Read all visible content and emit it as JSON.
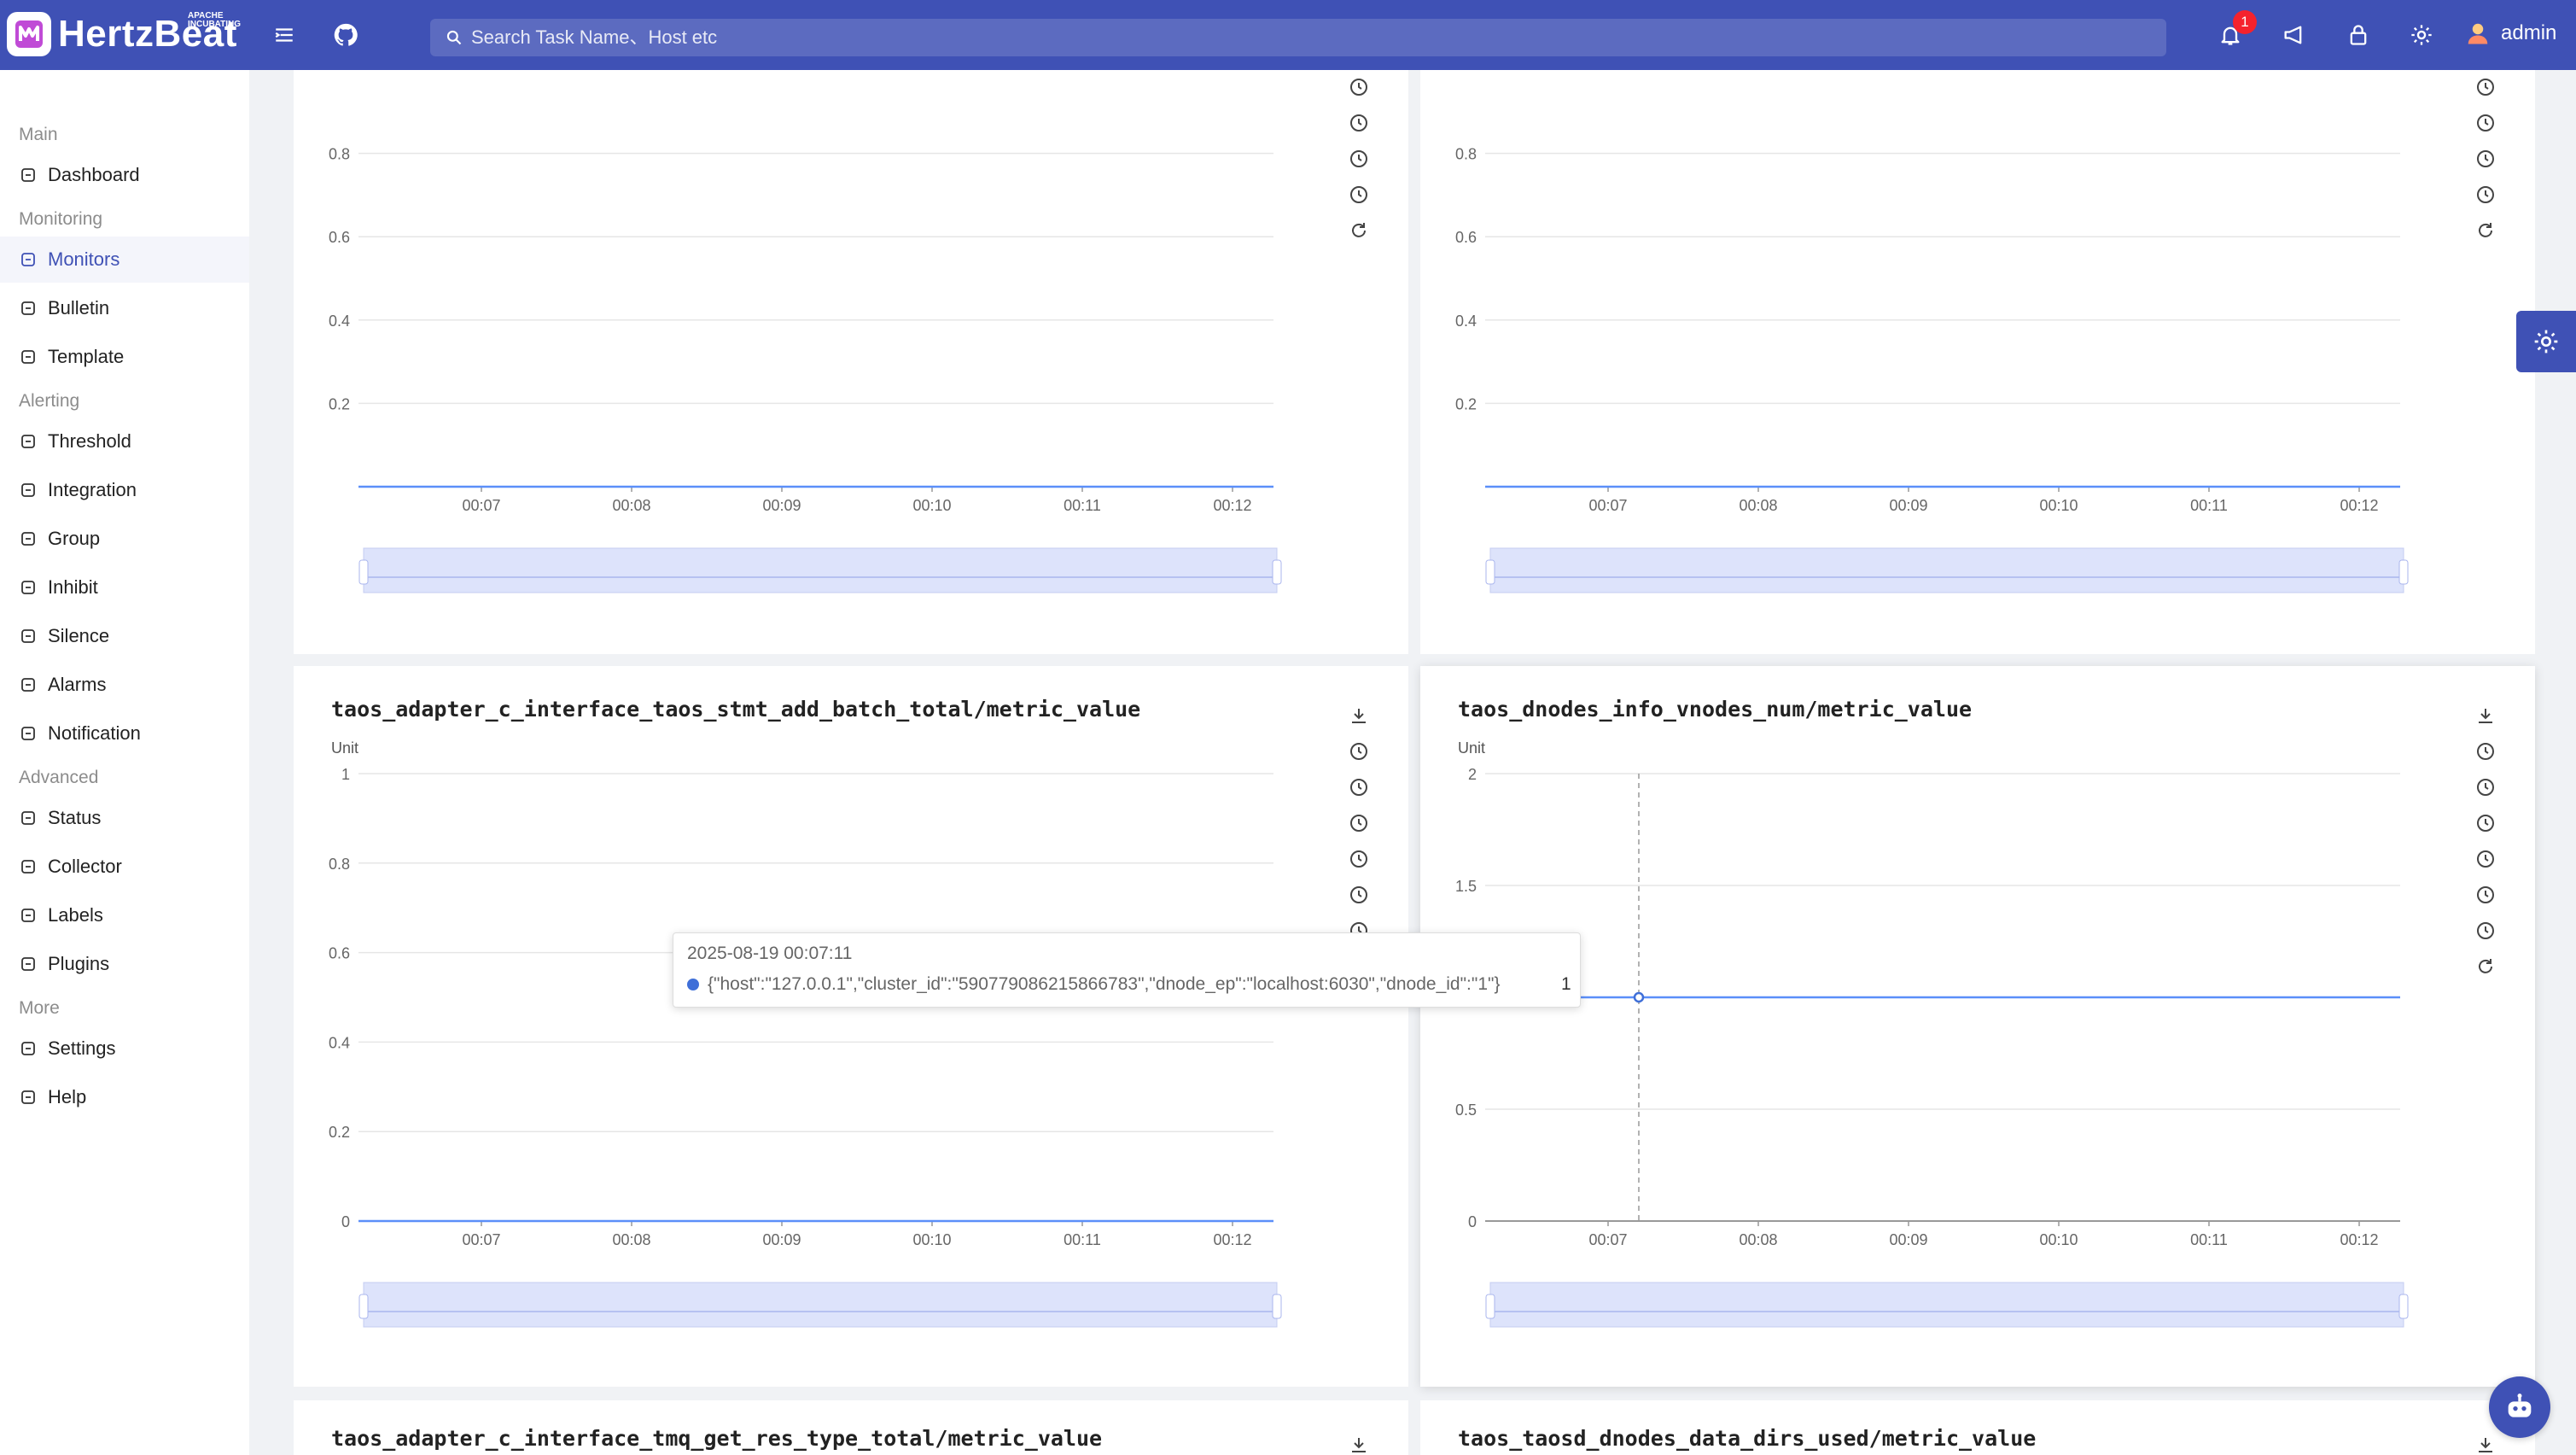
{
  "app": {
    "name": "HertzBeat",
    "apache_label": "APACHE INCUBATING",
    "search_placeholder": "Search Task Name、Host etc",
    "notification_count": "1",
    "user": "admin",
    "brand_color": "#3f51b5"
  },
  "sidebar": {
    "groups": [
      {
        "title": "Main",
        "items": [
          {
            "label": "Dashboard",
            "icon": "dashboard-icon"
          }
        ]
      },
      {
        "title": "Monitoring",
        "items": [
          {
            "label": "Monitors",
            "icon": "monitor-icon",
            "active": true
          },
          {
            "label": "Bulletin",
            "icon": "bulletin-icon"
          },
          {
            "label": "Template",
            "icon": "template-icon"
          }
        ]
      },
      {
        "title": "Alerting",
        "items": [
          {
            "label": "Threshold",
            "icon": "threshold-icon"
          },
          {
            "label": "Integration",
            "icon": "integration-icon"
          },
          {
            "label": "Group",
            "icon": "group-icon"
          },
          {
            "label": "Inhibit",
            "icon": "inhibit-icon"
          },
          {
            "label": "Silence",
            "icon": "silence-icon"
          },
          {
            "label": "Alarms",
            "icon": "alarm-icon"
          },
          {
            "label": "Notification",
            "icon": "notification-icon"
          }
        ]
      },
      {
        "title": "Advanced",
        "items": [
          {
            "label": "Status",
            "icon": "status-icon"
          },
          {
            "label": "Collector",
            "icon": "collector-icon"
          },
          {
            "label": "Labels",
            "icon": "label-icon"
          },
          {
            "label": "Plugins",
            "icon": "plugin-icon"
          }
        ]
      },
      {
        "title": "More",
        "items": [
          {
            "label": "Settings",
            "icon": "settings-icon"
          },
          {
            "label": "Help",
            "icon": "help-icon"
          }
        ]
      }
    ]
  },
  "charts": {
    "c1": {
      "title": "",
      "unit": "",
      "ylim": [
        0,
        1
      ],
      "yticks": [
        "0.2",
        "0.4",
        "0.6",
        "0.8"
      ]
    },
    "c2": {
      "title": "",
      "unit": "",
      "ylim": [
        0,
        1
      ],
      "yticks": [
        "0.2",
        "0.4",
        "0.6",
        "0.8"
      ]
    },
    "c3": {
      "title": "taos_adapter_c_interface_taos_stmt_add_batch_total/metric_value",
      "unit": "Unit",
      "ylim": [
        0,
        1
      ],
      "yticks": [
        "0",
        "0.2",
        "0.4",
        "0.6",
        "0.8",
        "1"
      ]
    },
    "c4": {
      "title": "taos_dnodes_info_vnodes_num/metric_value",
      "unit": "Unit",
      "ylim": [
        0,
        2
      ],
      "yticks": [
        "0",
        "0.5",
        "1.5",
        "2"
      ]
    },
    "c5": {
      "title": "taos_adapter_c_interface_tmq_get_res_type_total/metric_value"
    },
    "c6": {
      "title": "taos_taosd_dnodes_data_dirs_used/metric_value"
    }
  },
  "chart_data": [
    {
      "type": "line",
      "title": "",
      "x": [
        "00:07",
        "00:08",
        "00:09",
        "00:10",
        "00:11",
        "00:12"
      ],
      "series": [
        {
          "values": [
            0,
            0,
            0,
            0,
            0,
            0
          ]
        }
      ],
      "ylim": [
        0,
        1
      ]
    },
    {
      "type": "line",
      "title": "",
      "x": [
        "00:07",
        "00:08",
        "00:09",
        "00:10",
        "00:11",
        "00:12"
      ],
      "series": [
        {
          "values": [
            0,
            0,
            0,
            0,
            0,
            0
          ]
        }
      ],
      "ylim": [
        0,
        1
      ]
    },
    {
      "type": "line",
      "title": "taos_adapter_c_interface_taos_stmt_add_batch_total/metric_value",
      "ylabel": "Unit",
      "x": [
        "00:07",
        "00:08",
        "00:09",
        "00:10",
        "00:11",
        "00:12"
      ],
      "series": [
        {
          "values": [
            0,
            0,
            0,
            0,
            0,
            0
          ]
        }
      ],
      "ylim": [
        0,
        1
      ]
    },
    {
      "type": "line",
      "title": "taos_dnodes_info_vnodes_num/metric_value",
      "ylabel": "Unit",
      "x": [
        "00:07",
        "00:08",
        "00:09",
        "00:10",
        "00:11",
        "00:12"
      ],
      "series": [
        {
          "name": "{\"host\":\"127.0.0.1\",\"cluster_id\":\"590779086215866783\",\"dnode_ep\":\"localhost:6030\",\"dnode_id\":\"1\"}",
          "values": [
            1,
            1,
            1,
            1,
            1,
            1
          ]
        }
      ],
      "ylim": [
        0,
        2
      ]
    }
  ],
  "tooltip": {
    "time": "2025-08-19 00:07:11",
    "series": "{\"host\":\"127.0.0.1\",\"cluster_id\":\"590779086215866783\",\"dnode_ep\":\"localhost:6030\",\"dnode_id\":\"1\"}",
    "value": "1"
  }
}
